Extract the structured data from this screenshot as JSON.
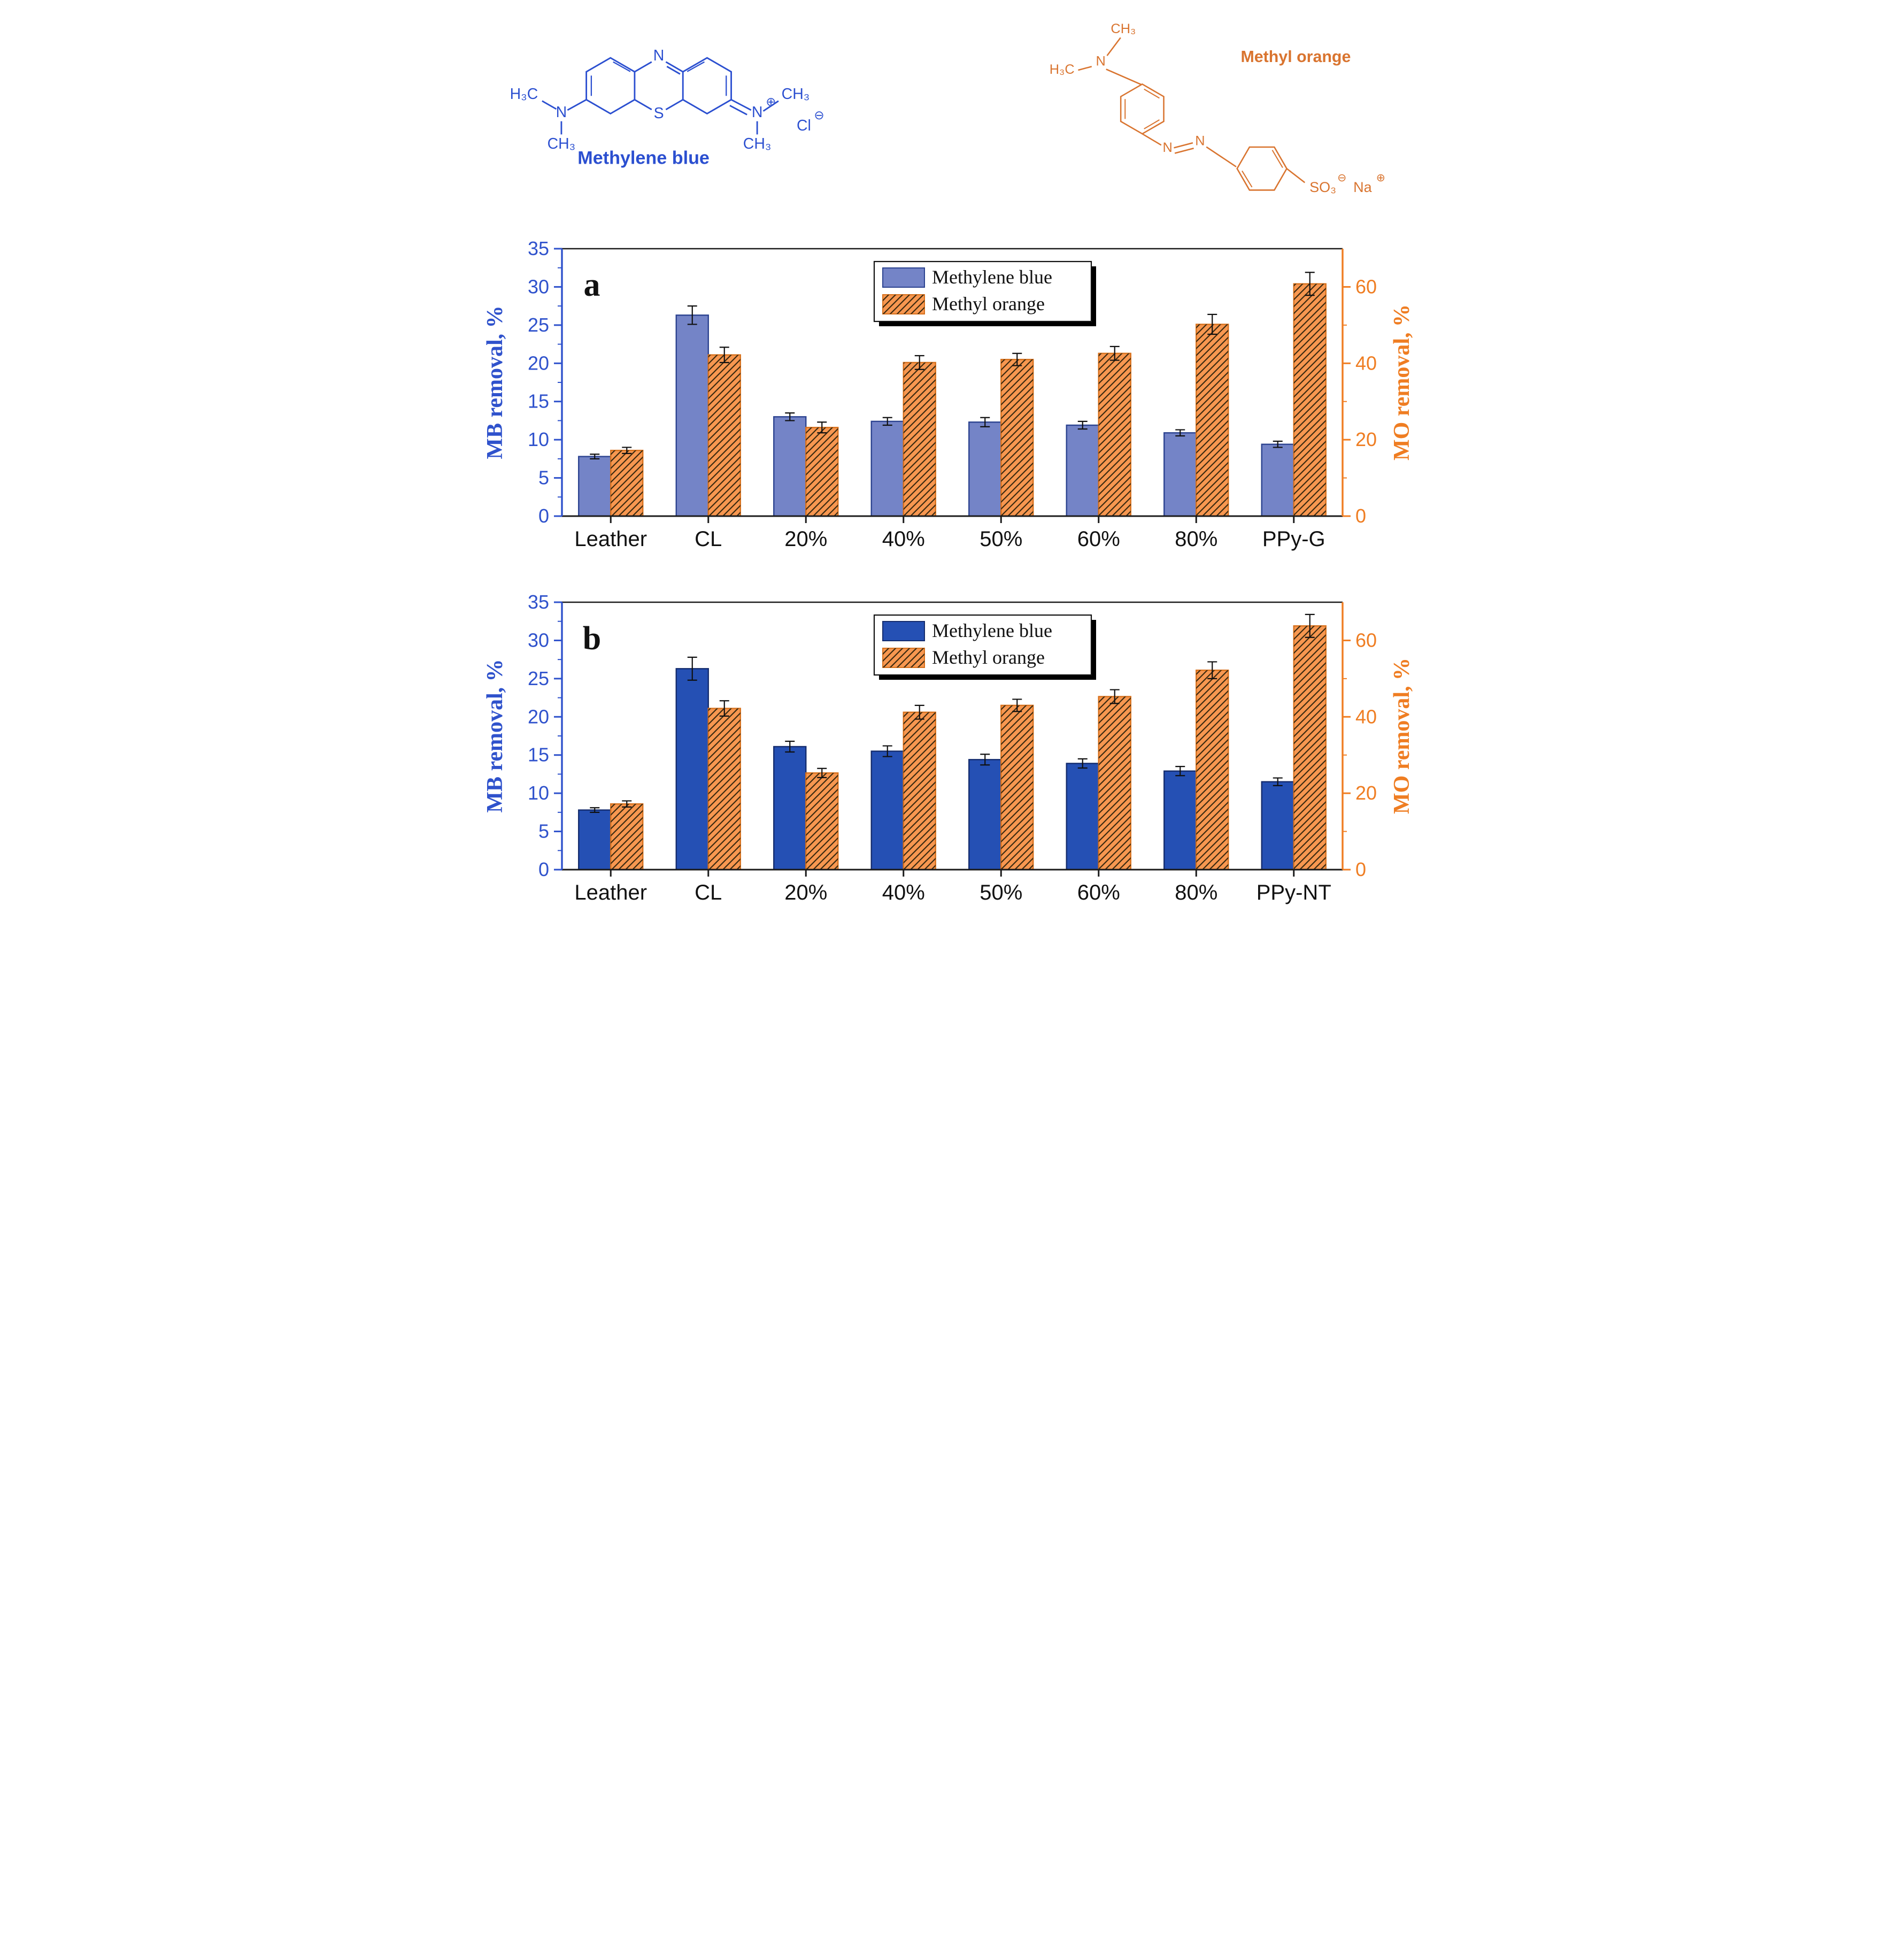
{
  "molecules": {
    "methylene_blue": {
      "title": "Methylene blue",
      "color": "#2b4fd0",
      "atoms": {
        "n_top": "N",
        "s": "S",
        "n_left": "N",
        "h3c_left": "H₃C",
        "ch3_left": "CH₃",
        "n_right": "N",
        "plus": "⊕",
        "ch3_right_top": "CH₃",
        "ch3_right_bottom": "CH₃",
        "cl": "Cl",
        "minus": "⊖"
      }
    },
    "methyl_orange": {
      "title": "Methyl orange",
      "color": "#d9742f",
      "atoms": {
        "ch3_top": "CH₃",
        "h3c_left": "H₃C",
        "n_amine": "N",
        "n_azo_1": "N",
        "n_azo_2": "N",
        "so3": "SO₃",
        "minus": "⊖",
        "na": "Na",
        "plus": "⊕"
      }
    }
  },
  "chart_data": [
    {
      "type": "bar",
      "panel": "a",
      "categories": [
        "Leather",
        "CL",
        "20%",
        "40%",
        "50%",
        "60%",
        "80%",
        "PPy-G"
      ],
      "series": [
        {
          "name": "Methylene blue",
          "axis": "left",
          "color": "#7484c7",
          "edge": "#2c4390",
          "values": [
            7.8,
            26.3,
            13.0,
            12.4,
            12.3,
            11.9,
            10.9,
            9.4
          ],
          "errors": [
            0.3,
            1.2,
            0.5,
            0.5,
            0.6,
            0.5,
            0.4,
            0.4
          ]
        },
        {
          "name": "Methyl orange",
          "axis": "right",
          "color": "#f79750",
          "edge": "#d8711c",
          "hatch": true,
          "values": [
            17.2,
            42.2,
            23.2,
            40.2,
            41.0,
            42.6,
            50.2,
            60.8
          ],
          "errors": [
            0.8,
            2.0,
            1.4,
            1.8,
            1.6,
            1.8,
            2.6,
            3.0
          ]
        }
      ],
      "left_axis": {
        "label": "MB removal, %",
        "min": 0,
        "max": 35,
        "ticks": [
          0,
          5,
          10,
          15,
          20,
          25,
          30,
          35
        ],
        "color": "#2f52cc"
      },
      "right_axis": {
        "label": "MO removal, %",
        "min": 0,
        "max": 70,
        "ticks": [
          0,
          20,
          40,
          60
        ],
        "color": "#ef7d22"
      },
      "legend_position": "top-center",
      "grid": false
    },
    {
      "type": "bar",
      "panel": "b",
      "categories": [
        "Leather",
        "CL",
        "20%",
        "40%",
        "50%",
        "60%",
        "80%",
        "PPy-NT"
      ],
      "series": [
        {
          "name": "Methylene blue",
          "axis": "left",
          "color": "#2550b4",
          "edge": "#142c6e",
          "values": [
            7.8,
            26.3,
            16.1,
            15.5,
            14.4,
            13.9,
            12.9,
            11.5
          ],
          "errors": [
            0.3,
            1.5,
            0.7,
            0.7,
            0.7,
            0.6,
            0.6,
            0.5
          ]
        },
        {
          "name": "Methyl orange",
          "axis": "right",
          "color": "#f79750",
          "edge": "#d8711c",
          "hatch": true,
          "values": [
            17.2,
            42.2,
            25.3,
            41.2,
            43.0,
            45.3,
            52.2,
            63.8
          ],
          "errors": [
            0.8,
            2.0,
            1.2,
            1.8,
            1.6,
            1.8,
            2.2,
            3.0
          ]
        }
      ],
      "left_axis": {
        "label": "MB removal, %",
        "min": 0,
        "max": 35,
        "ticks": [
          0,
          5,
          10,
          15,
          20,
          25,
          30,
          35
        ],
        "color": "#2f52cc"
      },
      "right_axis": {
        "label": "MO removal, %",
        "min": 0,
        "max": 70,
        "ticks": [
          0,
          20,
          40,
          60
        ],
        "color": "#ef7d22"
      },
      "legend_position": "top-center",
      "grid": false
    }
  ]
}
